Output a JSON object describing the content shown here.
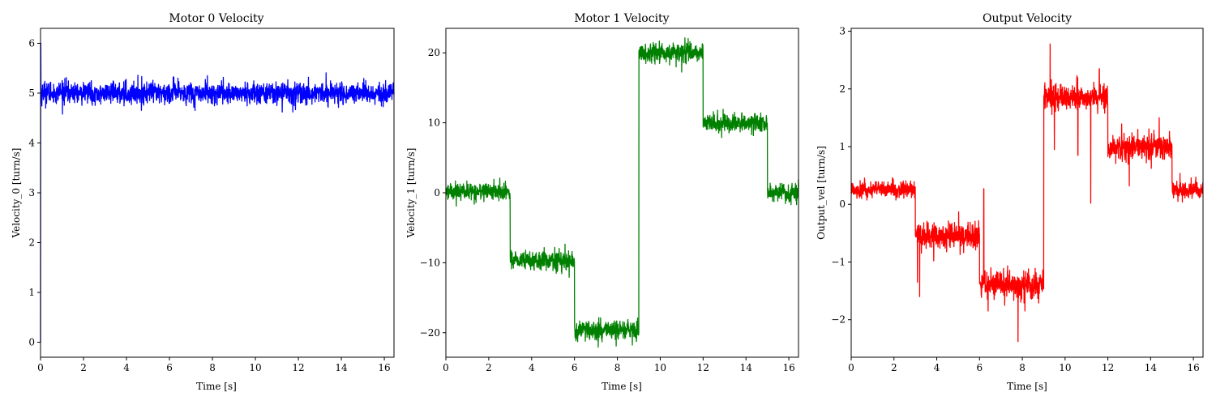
{
  "chart_data": [
    {
      "type": "line",
      "title": "Motor 0 Velocity",
      "xlabel": "Time [s]",
      "ylabel": "Velocity_0 [turn/s]",
      "xlim": [
        0,
        16.45
      ],
      "ylim": [
        -0.3,
        6.3
      ],
      "xticks": [
        0,
        2,
        4,
        6,
        8,
        10,
        12,
        14,
        16
      ],
      "yticks": [
        0,
        1,
        2,
        3,
        4,
        5,
        6
      ],
      "grid": false,
      "color": "#0000ff",
      "segments": [
        {
          "t0": 0.0,
          "t1": 0.02,
          "level": 6.0,
          "noise": 0.0
        },
        {
          "t0": 0.02,
          "t1": 16.45,
          "level": 5.0,
          "noise": 0.12
        }
      ],
      "series": [
        {
          "name": "",
          "x": [
            0,
            0.02,
            0.05,
            16.45
          ],
          "y": [
            0,
            6.0,
            5.0,
            5.0
          ]
        }
      ]
    },
    {
      "type": "line",
      "title": "Motor 1 Velocity",
      "xlabel": "Time [s]",
      "ylabel": "Velocity_1 [turn/s]",
      "xlim": [
        0,
        16.45
      ],
      "ylim": [
        -23.5,
        23.5
      ],
      "xticks": [
        0,
        2,
        4,
        6,
        8,
        10,
        12,
        14,
        16
      ],
      "yticks": [
        -20,
        -10,
        0,
        10,
        20
      ],
      "grid": false,
      "color": "#008000",
      "segments": [
        {
          "t0": 0.0,
          "t1": 3.0,
          "level": 0.2,
          "noise": 0.7
        },
        {
          "t0": 3.0,
          "t1": 6.0,
          "level": -9.7,
          "noise": 0.75
        },
        {
          "t0": 6.0,
          "t1": 9.0,
          "level": -19.7,
          "noise": 0.75
        },
        {
          "t0": 9.0,
          "t1": 12.0,
          "level": 20.0,
          "noise": 0.75
        },
        {
          "t0": 12.0,
          "t1": 15.0,
          "level": 9.9,
          "noise": 0.75
        },
        {
          "t0": 15.0,
          "t1": 16.45,
          "level": 0.0,
          "noise": 0.7
        }
      ],
      "series": [
        {
          "name": "",
          "x": [
            0,
            3,
            3,
            6,
            6,
            9,
            9,
            12,
            12,
            15,
            15,
            16.45
          ],
          "y": [
            0.2,
            0.2,
            -9.7,
            -9.7,
            -19.7,
            -19.7,
            20.0,
            20.0,
            9.9,
            9.9,
            0.0,
            0.0
          ]
        }
      ]
    },
    {
      "type": "line",
      "title": "Output Velocity",
      "xlabel": "Time [s]",
      "ylabel": "Output_vel [turn/s]",
      "xlim": [
        0,
        16.45
      ],
      "ylim": [
        -2.65,
        3.05
      ],
      "xticks": [
        0,
        2,
        4,
        6,
        8,
        10,
        12,
        14,
        16
      ],
      "yticks": [
        -2,
        -1,
        0,
        1,
        2,
        3
      ],
      "grid": false,
      "color": "#ff0000",
      "segments": [
        {
          "t0": 0.0,
          "t1": 3.0,
          "level": 0.25,
          "noise": 0.08
        },
        {
          "t0": 3.0,
          "t1": 6.0,
          "level": -0.55,
          "noise": 0.13
        },
        {
          "t0": 6.0,
          "t1": 9.0,
          "level": -1.4,
          "noise": 0.13
        },
        {
          "t0": 9.0,
          "t1": 12.0,
          "level": 1.85,
          "noise": 0.13
        },
        {
          "t0": 12.0,
          "t1": 15.0,
          "level": 1.0,
          "noise": 0.12
        },
        {
          "t0": 15.0,
          "t1": 16.45,
          "level": 0.25,
          "noise": 0.09
        }
      ],
      "spikes": [
        {
          "x": 3.1,
          "y": -1.35
        },
        {
          "x": 3.2,
          "y": -1.6
        },
        {
          "x": 6.2,
          "y": 0.27
        },
        {
          "x": 6.4,
          "y": -1.85
        },
        {
          "x": 7.8,
          "y": -2.38
        },
        {
          "x": 9.3,
          "y": 2.78
        },
        {
          "x": 9.5,
          "y": 0.95
        },
        {
          "x": 10.6,
          "y": 0.85
        },
        {
          "x": 11.2,
          "y": 0.02
        },
        {
          "x": 11.6,
          "y": 2.35
        },
        {
          "x": 13.0,
          "y": 0.32
        },
        {
          "x": 14.4,
          "y": 1.5
        }
      ],
      "series": [
        {
          "name": "",
          "x": [
            0,
            3,
            3,
            6,
            6,
            9,
            9,
            12,
            12,
            15,
            15,
            16.45
          ],
          "y": [
            0.25,
            0.25,
            -0.55,
            -0.55,
            -1.4,
            -1.4,
            1.85,
            1.85,
            1.0,
            1.0,
            0.25,
            0.25
          ]
        }
      ]
    }
  ]
}
